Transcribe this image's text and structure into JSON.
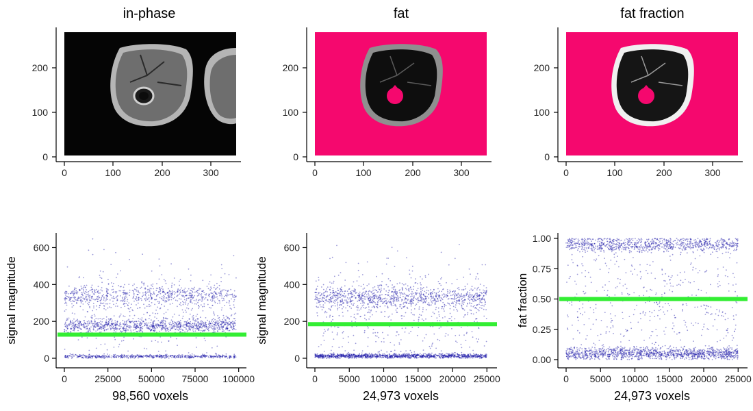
{
  "colors": {
    "mask": "#F5086E",
    "points": "#1F1AA8",
    "threshold": "#33EE33",
    "image_bg": "#050505"
  },
  "chart_data": [
    {
      "type": "heatmap",
      "title": "in-phase",
      "xlim": [
        0,
        350
      ],
      "ylim": [
        0,
        280
      ],
      "xticks": [
        "0",
        "100",
        "200",
        "300"
      ],
      "yticks": [
        "0",
        "100",
        "200"
      ],
      "image": "grayscale MRI axial thigh slice, in-phase",
      "mask": false
    },
    {
      "type": "heatmap",
      "title": "fat",
      "xlim": [
        0,
        350
      ],
      "ylim": [
        0,
        280
      ],
      "xticks": [
        "0",
        "100",
        "200",
        "300"
      ],
      "yticks": [
        "0",
        "100",
        "200"
      ],
      "image": "grayscale MRI fat image, background masked magenta",
      "mask": true
    },
    {
      "type": "heatmap",
      "title": "fat fraction",
      "xlim": [
        0,
        350
      ],
      "ylim": [
        0,
        280
      ],
      "xticks": [
        "0",
        "100",
        "200",
        "300"
      ],
      "yticks": [
        "0",
        "100",
        "200"
      ],
      "image": "grayscale fat fraction map, background masked magenta",
      "mask": true
    },
    {
      "type": "scatter",
      "xlabel": "98,560 voxels",
      "ylabel": "signal magnitude",
      "xlim": [
        0,
        100000
      ],
      "ylim": [
        0,
        650
      ],
      "xticks": [
        "0",
        "25000",
        "50000",
        "75000",
        "100000"
      ],
      "yticks": [
        "0",
        "200",
        "400",
        "600"
      ],
      "n_points": 98560,
      "clusters": [
        {
          "center": 10,
          "spread": 5,
          "weight": 0.22
        },
        {
          "center": 175,
          "spread": 20,
          "weight": 0.38
        },
        {
          "center": 340,
          "spread": 28,
          "weight": 0.25
        },
        {
          "center": 260,
          "spread": 130,
          "weight": 0.15
        }
      ],
      "threshold": 128
    },
    {
      "type": "scatter",
      "xlabel": "24,973 voxels",
      "ylabel": "signal magnitude",
      "xlim": [
        0,
        25000
      ],
      "ylim": [
        0,
        650
      ],
      "xticks": [
        "0",
        "5000",
        "10000",
        "15000",
        "20000",
        "25000"
      ],
      "yticks": [
        "0",
        "200",
        "400",
        "600"
      ],
      "n_points": 24973,
      "clusters": [
        {
          "center": 12,
          "spread": 6,
          "weight": 0.45
        },
        {
          "center": 330,
          "spread": 30,
          "weight": 0.35
        },
        {
          "center": 250,
          "spread": 140,
          "weight": 0.2
        }
      ],
      "threshold": 185
    },
    {
      "type": "scatter",
      "xlabel": "24,973 voxels",
      "ylabel": "fat fraction",
      "xlim": [
        0,
        25000
      ],
      "ylim": [
        0,
        1
      ],
      "xticks": [
        "0",
        "5000",
        "10000",
        "15000",
        "20000",
        "25000"
      ],
      "yticks": [
        "0.00",
        "0.25",
        "0.50",
        "0.75",
        "1.00"
      ],
      "n_points": 24973,
      "clusters": [
        {
          "center": 0.05,
          "spread": 0.025,
          "weight": 0.45
        },
        {
          "center": 0.95,
          "spread": 0.03,
          "weight": 0.35
        },
        {
          "center": 0.5,
          "spread": 0.3,
          "weight": 0.2
        }
      ],
      "threshold": 0.5
    }
  ]
}
